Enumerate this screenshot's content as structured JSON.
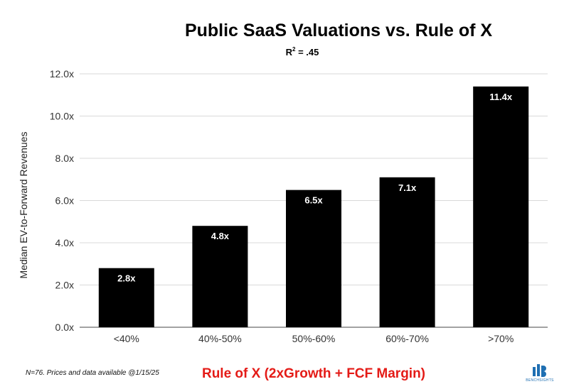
{
  "chart_data": {
    "type": "bar",
    "title": "Public SaaS Valuations vs. Rule of X",
    "subtitle_base": "R",
    "subtitle_sup": "2",
    "subtitle_rest": " = .45",
    "xlabel": "Rule of X (2xGrowth + FCF Margin)",
    "ylabel": "Median EV-to-Forward Revenues",
    "categories": [
      "<40%",
      "40%-50%",
      "50%-60%",
      "60%-70%",
      ">70%"
    ],
    "values": [
      2.8,
      4.8,
      6.5,
      7.1,
      11.4
    ],
    "data_labels": [
      "2.8x",
      "4.8x",
      "6.5x",
      "7.1x",
      "11.4x"
    ],
    "y_ticks": [
      0,
      2,
      4,
      6,
      8,
      10,
      12
    ],
    "y_tick_labels": [
      "0.0x",
      "2.0x",
      "4.0x",
      "6.0x",
      "8.0x",
      "10.0x",
      "12.0x"
    ],
    "ylim": [
      0,
      12
    ],
    "grid": true,
    "legend": "none",
    "bar_color": "#000000",
    "xlabel_color": "#e41b17"
  },
  "footer": {
    "note": "N=76. Prices and data available @1/15/25",
    "brand": "BENCHSIGHTS"
  }
}
